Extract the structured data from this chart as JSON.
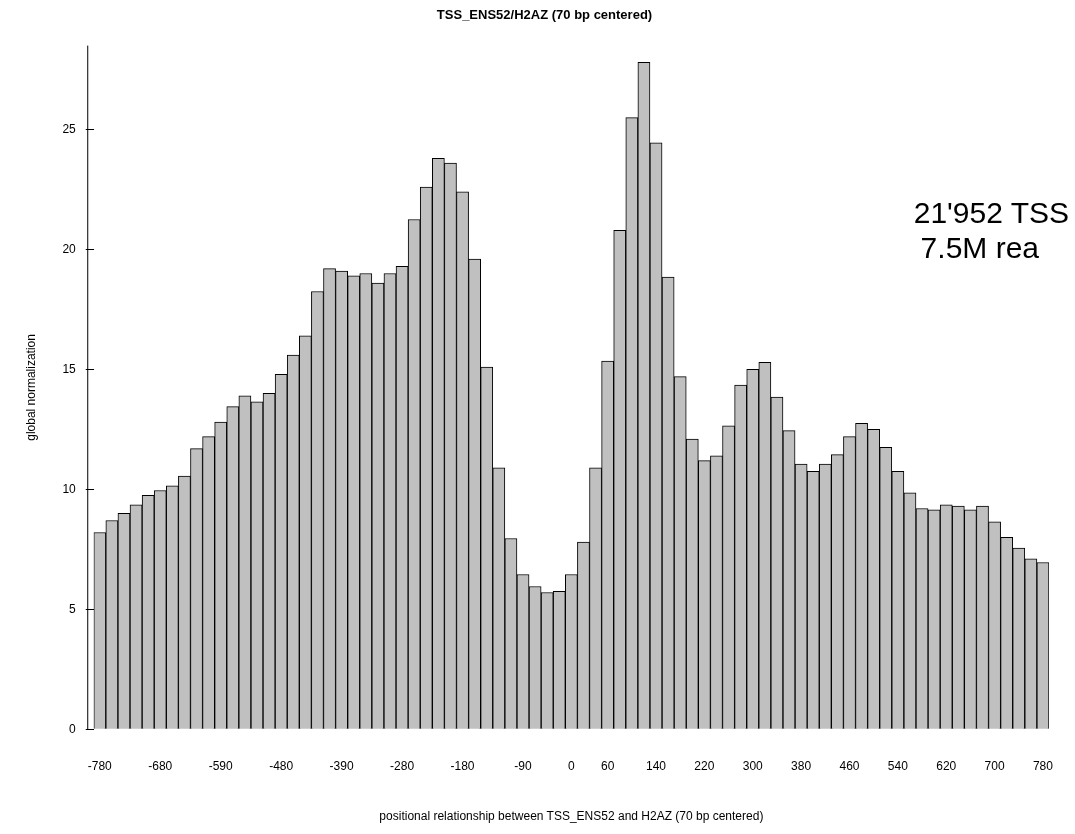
{
  "chart_data": {
    "type": "bar",
    "title": "TSS_ENS52/H2AZ (70 bp centered)",
    "xlabel": "positional relationship between TSS_ENS52 and H2AZ (70 bp centered)",
    "ylabel": "global normalization",
    "annotations": [
      "21'952 TSS",
      "7.5M rea"
    ],
    "categories": [
      "-780",
      null,
      null,
      null,
      null,
      "-680",
      null,
      null,
      null,
      null,
      "-590",
      null,
      null,
      null,
      null,
      "-480",
      null,
      null,
      null,
      null,
      "-390",
      null,
      null,
      null,
      null,
      "-280",
      null,
      null,
      null,
      null,
      "-180",
      null,
      null,
      null,
      null,
      "-90",
      null,
      null,
      null,
      "0",
      null,
      null,
      "60",
      null,
      null,
      null,
      "140",
      null,
      null,
      null,
      "220",
      null,
      null,
      null,
      "300",
      null,
      null,
      null,
      "380",
      null,
      null,
      null,
      "460",
      null,
      null,
      null,
      "540",
      null,
      null,
      null,
      "620",
      null,
      null,
      null,
      "700",
      null,
      null,
      null,
      "780"
    ],
    "values": [
      8.2,
      8.7,
      9.0,
      9.35,
      9.75,
      9.95,
      10.15,
      10.55,
      11.7,
      12.2,
      12.8,
      13.45,
      13.9,
      13.65,
      14.0,
      14.8,
      15.6,
      16.4,
      18.25,
      19.2,
      19.1,
      18.9,
      19.0,
      18.6,
      19.0,
      19.3,
      21.25,
      22.6,
      23.8,
      23.6,
      22.4,
      19.6,
      15.1,
      10.9,
      7.95,
      6.45,
      5.95,
      5.7,
      5.75,
      6.45,
      7.8,
      10.9,
      15.35,
      20.8,
      25.5,
      27.8,
      24.45,
      18.85,
      14.7,
      12.1,
      11.2,
      11.4,
      12.65,
      14.35,
      15.0,
      15.3,
      13.85,
      12.45,
      11.05,
      10.75,
      11.05,
      11.45,
      12.2,
      12.75,
      12.5,
      11.75,
      10.75,
      9.85,
      9.2,
      9.15,
      9.35,
      9.3,
      9.15,
      9.3,
      8.65,
      8.0,
      7.55,
      7.1,
      6.95
    ],
    "color": "#c0c0c0",
    "ylim": [
      0,
      28.5
    ],
    "yticks": [
      0,
      5,
      10,
      15,
      20,
      25
    ]
  }
}
